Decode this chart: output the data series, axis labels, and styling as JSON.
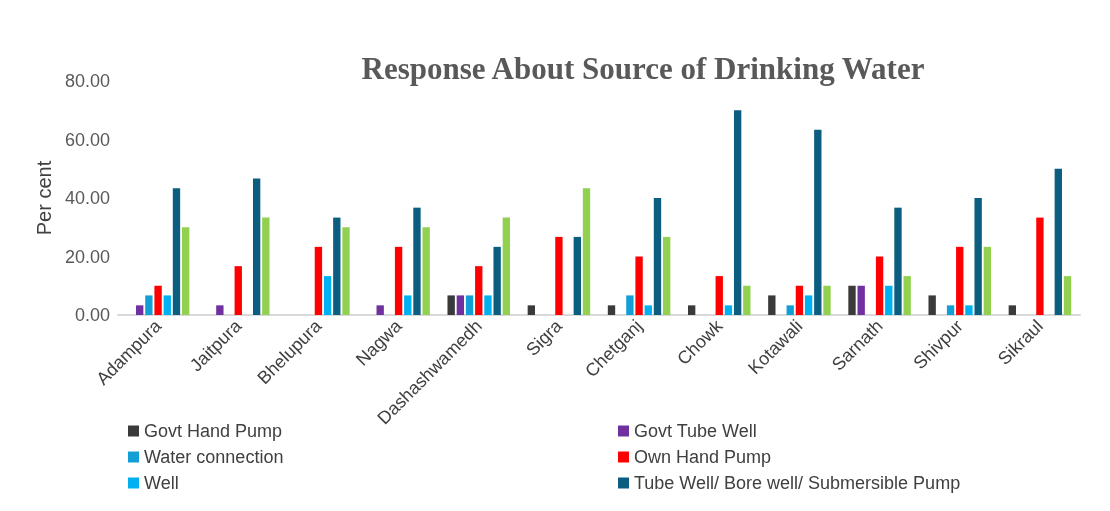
{
  "chart_data": {
    "type": "bar",
    "title": "Response About Source of Drinking Water",
    "ylabel": "Per cent",
    "categories": [
      "Adampura",
      "Jaitpura",
      "Bhelupura",
      "Nagwa",
      "Dashashwamedh",
      "Sigra",
      "Chetganj",
      "Chowk",
      "Kotawali",
      "Sarnath",
      "Shivpur",
      "Sikraul"
    ],
    "ylim": [
      0,
      80
    ],
    "yticks": [
      {
        "value": 0,
        "label": "0.00"
      },
      {
        "value": 20,
        "label": "20.00"
      },
      {
        "value": 40,
        "label": "40.00"
      },
      {
        "value": 60,
        "label": "60.00"
      },
      {
        "value": 80,
        "label": "80.00"
      }
    ],
    "grid": false,
    "legend": "bottom",
    "series": [
      {
        "name": "Govt Hand Pump",
        "color": "#3a3a3a",
        "values": [
          0,
          0,
          0,
          0,
          6.7,
          3.3,
          3.3,
          3.3,
          6.7,
          10,
          6.7,
          3.3
        ]
      },
      {
        "name": "Govt Tube Well",
        "color": "#7030a0",
        "values": [
          3.3,
          3.3,
          0,
          3.3,
          6.7,
          0,
          0,
          0,
          0,
          10,
          0,
          0
        ]
      },
      {
        "name": "Water connection",
        "color": "#129fd6",
        "values": [
          6.7,
          0,
          0,
          0,
          6.7,
          0,
          6.7,
          0,
          3.3,
          0,
          3.3,
          0
        ]
      },
      {
        "name": "Own Hand Pump",
        "color": "#ff0000",
        "values": [
          10,
          16.7,
          23.3,
          23.3,
          16.7,
          26.7,
          20,
          13.3,
          10,
          20,
          23.3,
          33.3
        ]
      },
      {
        "name": "Well",
        "color": "#00b0f0",
        "values": [
          6.7,
          0,
          13.3,
          6.7,
          6.7,
          0,
          3.3,
          3.3,
          6.7,
          10,
          3.3,
          0
        ]
      },
      {
        "name": "Tube Well/ Bore well/ Submersible Pump",
        "color": "#0b5e80",
        "values": [
          43.3,
          46.7,
          33.3,
          36.7,
          23.3,
          26.7,
          40,
          70,
          63.3,
          36.7,
          40,
          50
        ]
      },
      {
        "color": "#92d050",
        "values": [
          30,
          33.3,
          30,
          30,
          33.3,
          43.3,
          26.7,
          10,
          10,
          13.3,
          23.3,
          13.3
        ]
      }
    ]
  }
}
